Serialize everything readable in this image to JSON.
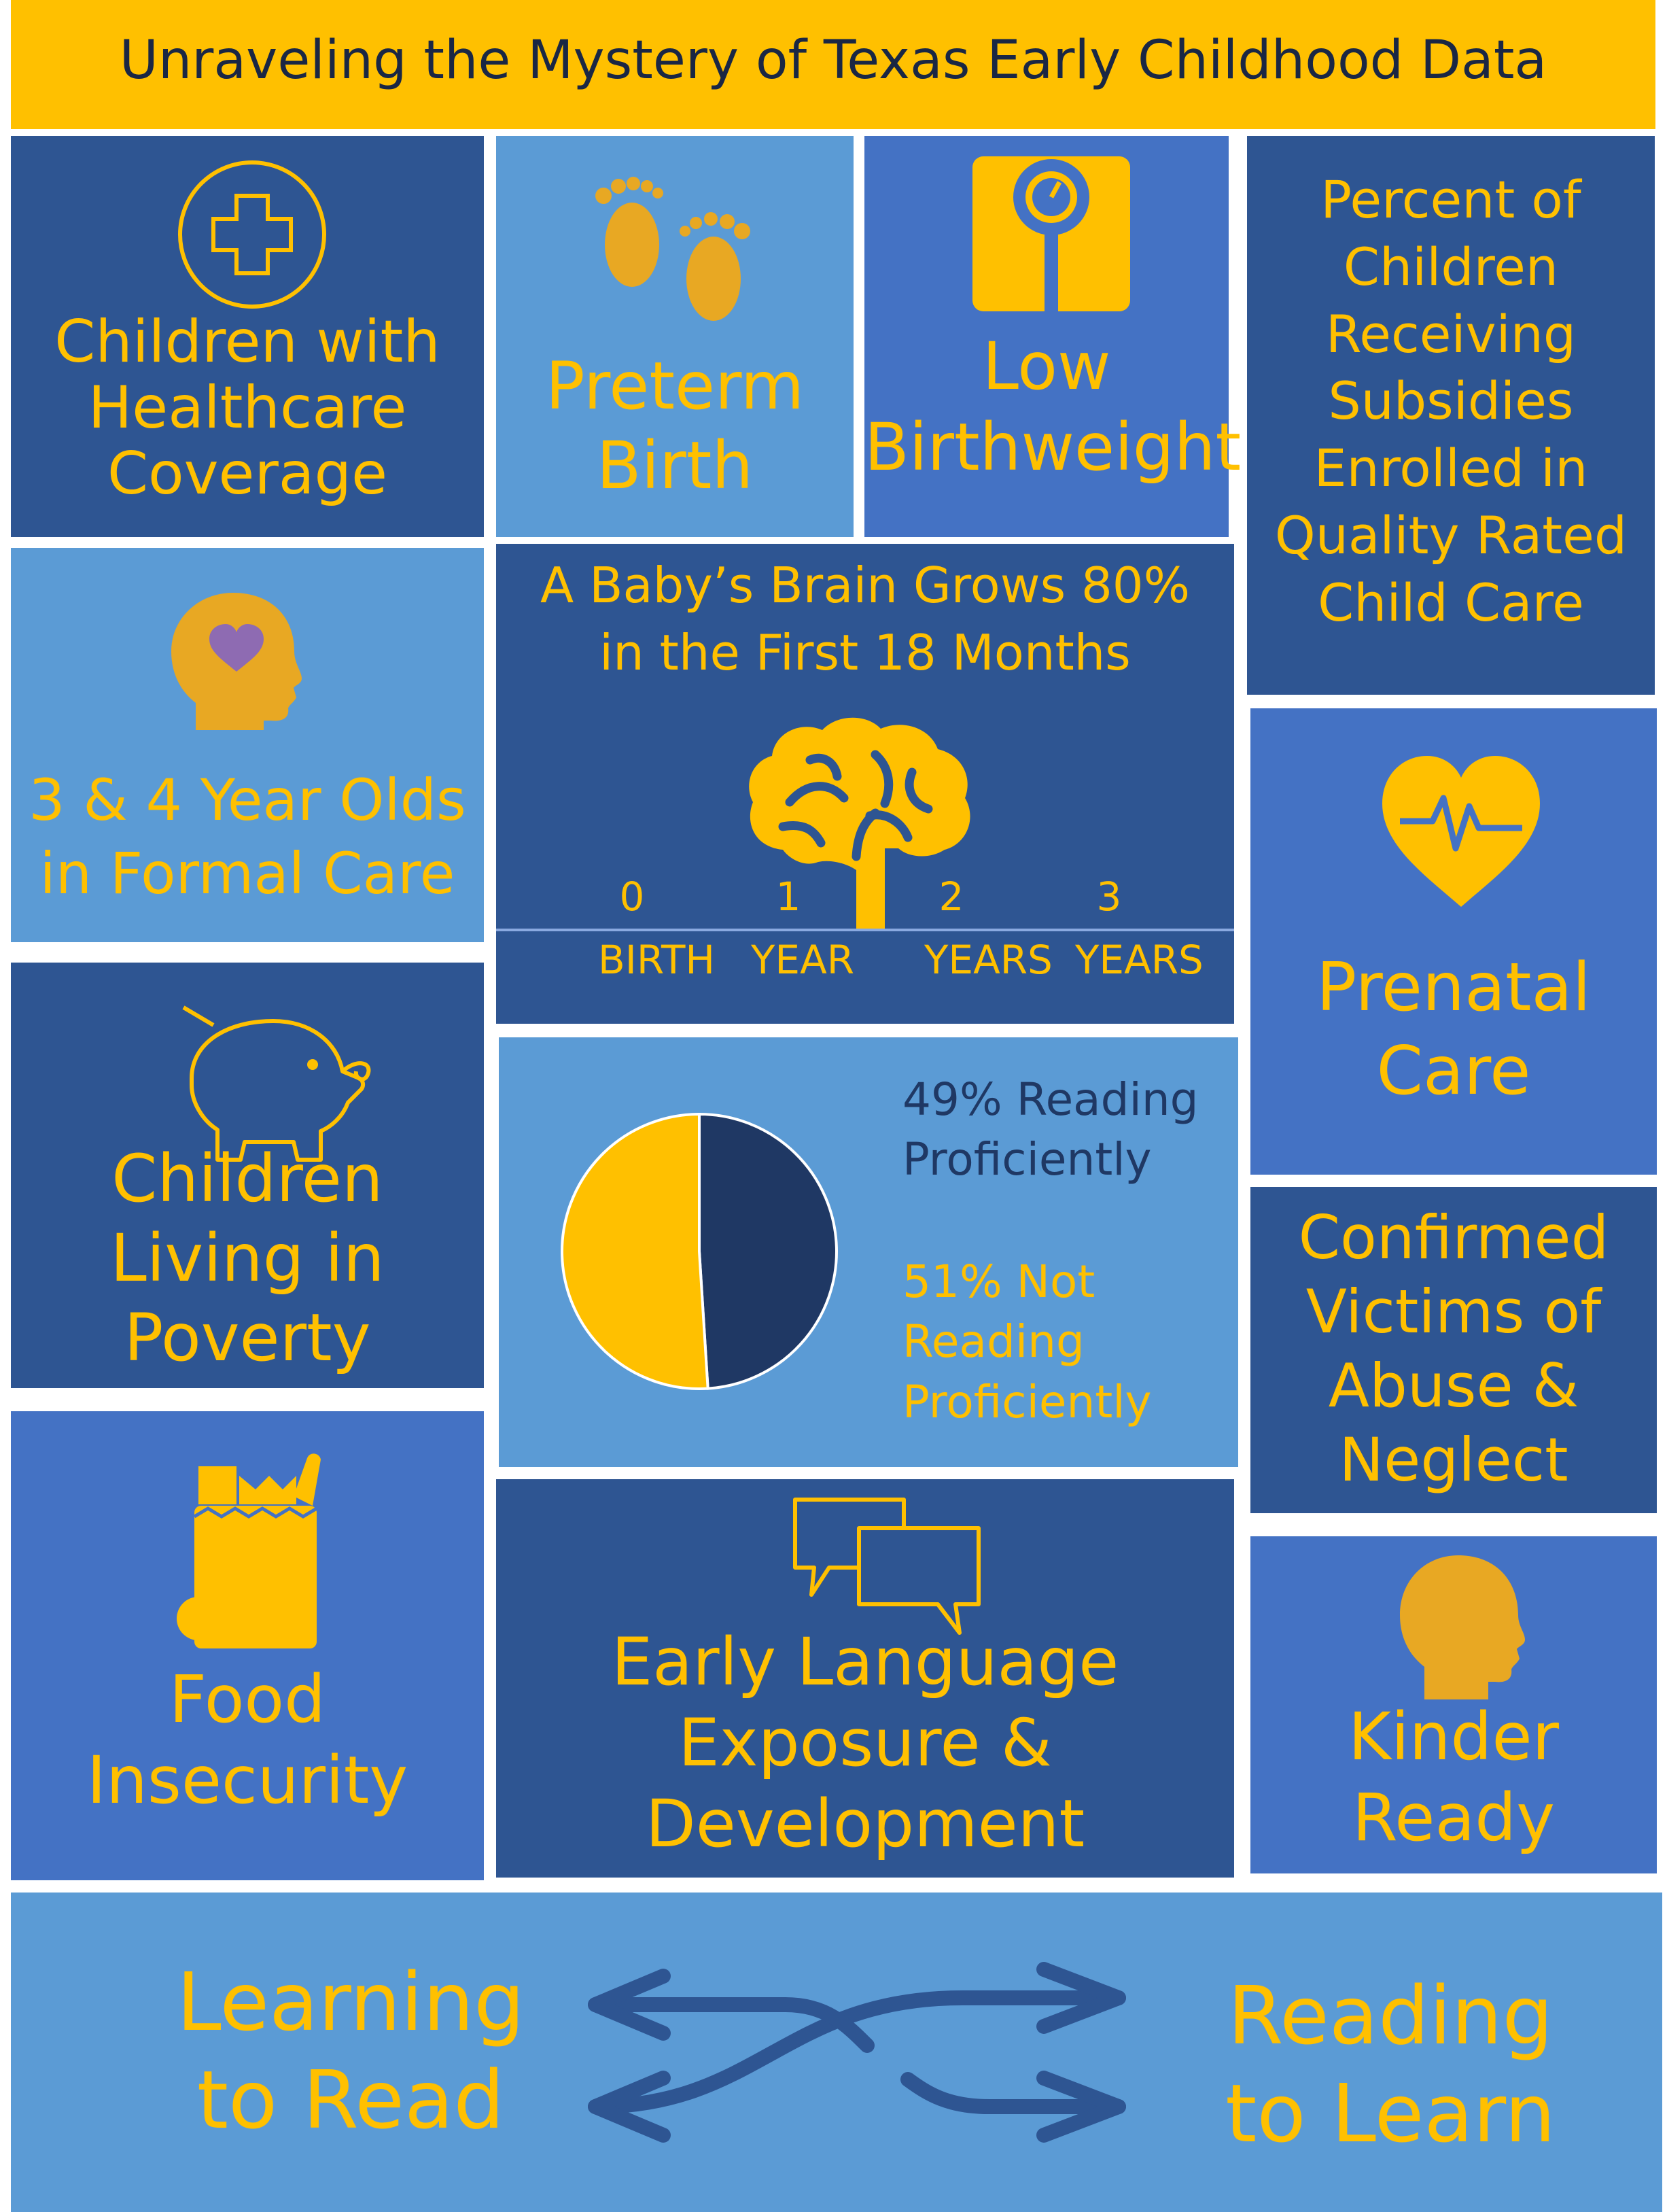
{
  "title": "Unraveling the Mystery of Texas Early Childhood Data",
  "colors": {
    "accent": "#ffc000",
    "dark_tile": "#2e5592",
    "mid_tile": "#4472c4",
    "light_tile": "#5b9bd5",
    "navy": "#1f3864",
    "heart": "#8e6bb2"
  },
  "tiles": {
    "healthcare": {
      "icon": "medical-cross-icon",
      "lines": [
        "Children with",
        "Healthcare",
        "Coverage"
      ]
    },
    "preterm": {
      "icon": "footprints-icon",
      "lines": [
        "Preterm",
        "Birth"
      ]
    },
    "birthweight": {
      "icon": "scale-icon",
      "lines": [
        "Low",
        "Birthweight"
      ]
    },
    "subsidies": {
      "lines": [
        "Percent of",
        "Children",
        "Receiving",
        "Subsidies",
        "Enrolled in",
        "Quality Rated",
        "Child Care"
      ]
    },
    "formal_care": {
      "icon": "head-heart-icon",
      "lines": [
        "3 & 4 Year Olds",
        "in Formal Care"
      ]
    },
    "brain": {
      "icon": "brain-icon",
      "lines": [
        "A Baby’s Brain Grows 80%",
        "in the First 18 Months"
      ],
      "timeline": [
        {
          "num": "0",
          "label": "BIRTH"
        },
        {
          "num": "1",
          "label": "YEAR"
        },
        {
          "num": "2",
          "label": "YEARS"
        },
        {
          "num": "3",
          "label": "YEARS"
        }
      ]
    },
    "prenatal": {
      "icon": "heartbeat-icon",
      "lines": [
        "Prenatal",
        "Care"
      ]
    },
    "poverty": {
      "icon": "piggy-bank-icon",
      "lines": [
        "Children",
        "Living in",
        "Poverty"
      ]
    },
    "reading": {
      "proficient_lines": [
        "49% Reading",
        "Proficiently"
      ],
      "not_proficient_lines": [
        "51% Not",
        "Reading",
        "Proficiently"
      ]
    },
    "abuse": {
      "lines": [
        "Confirmed",
        "Victims of",
        "Abuse &",
        "Neglect"
      ]
    },
    "food": {
      "icon": "grocery-bag-icon",
      "lines": [
        "Food",
        "Insecurity"
      ]
    },
    "language": {
      "icon": "speech-bubbles-icon",
      "lines": [
        "Early Language",
        "Exposure &",
        "Development"
      ]
    },
    "kinder": {
      "icon": "head-profile-icon",
      "lines": [
        "Kinder",
        "Ready"
      ]
    }
  },
  "footer": {
    "left_lines": [
      "Learning",
      "to Read"
    ],
    "right_lines": [
      "Reading",
      "to Learn"
    ],
    "icon": "crossing-arrows-icon"
  },
  "chart_data": {
    "type": "pie",
    "categories": [
      "49% Reading Proficiently",
      "51% Not Reading Proficiently"
    ],
    "values": [
      49,
      51
    ],
    "colors": [
      "#1f3864",
      "#ffc000"
    ]
  }
}
